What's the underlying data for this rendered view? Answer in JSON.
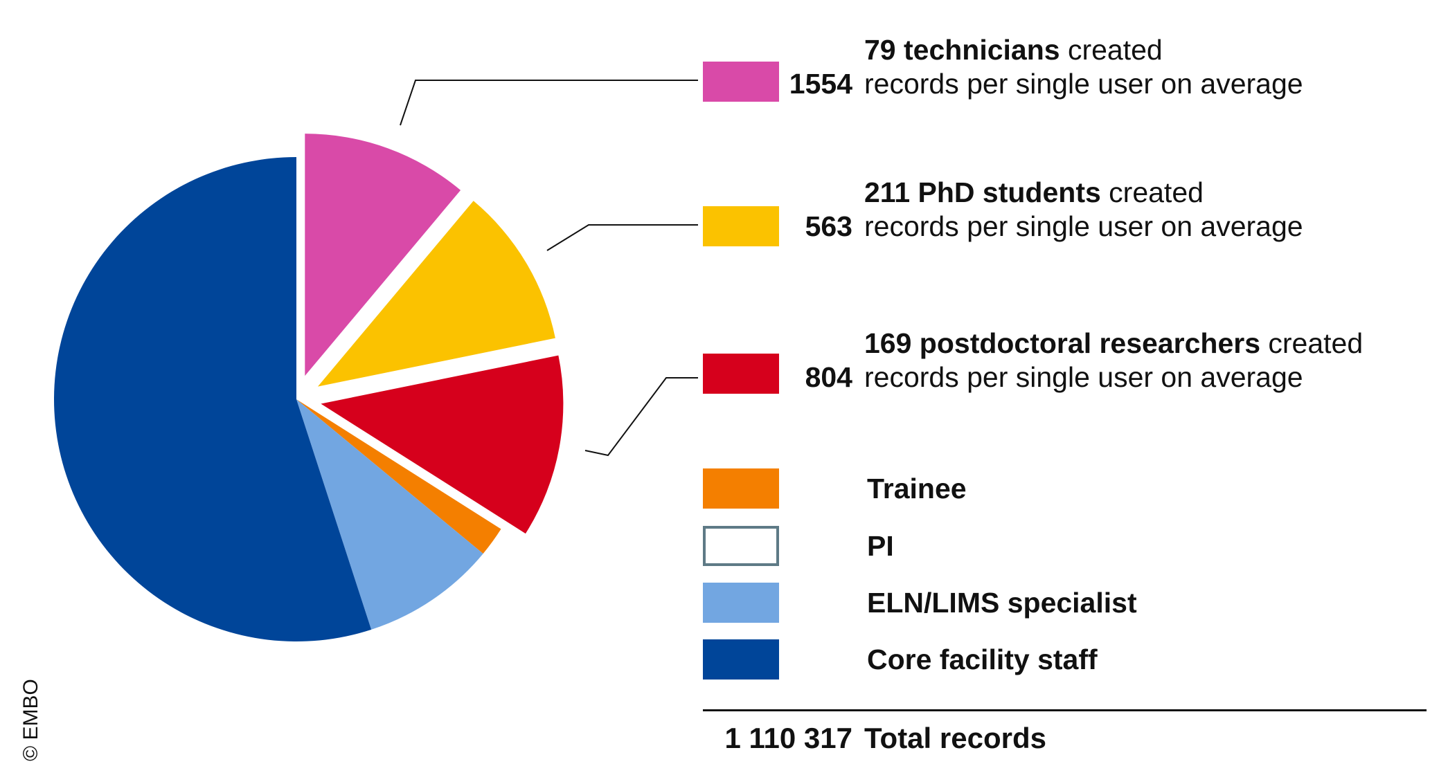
{
  "chart_data": {
    "type": "pie",
    "slices": [
      {
        "key": "technicians",
        "value": 11.1,
        "exploded": true,
        "color": "#d94aa8"
      },
      {
        "key": "phd",
        "value": 10.7,
        "exploded": true,
        "color": "#fbc200"
      },
      {
        "key": "postdoc",
        "value": 12.2,
        "exploded": true,
        "color": "#d6001c"
      },
      {
        "key": "trainee",
        "value": 2.0,
        "exploded": false,
        "color": "#f47f00"
      },
      {
        "key": "pi",
        "value": 0.0,
        "exploded": false,
        "color": "#ffffff"
      },
      {
        "key": "eln",
        "value": 9.0,
        "exploded": false,
        "color": "#72a6e1"
      },
      {
        "key": "core",
        "value": 55.0,
        "exploded": false,
        "color": "#004599"
      }
    ]
  },
  "callouts": [
    {
      "key": "technicians",
      "count_bold": "79 technicians",
      "suffix": " created",
      "records": "1554",
      "line2": "records per single user on average",
      "color": "#d94aa8"
    },
    {
      "key": "phd",
      "count_bold": "211 PhD students",
      "suffix": " created",
      "records": "563",
      "line2": "records per single user on average",
      "color": "#fbc200"
    },
    {
      "key": "postdoc",
      "count_bold": "169 postdoctoral researchers",
      "suffix": " created",
      "records": "804",
      "line2": "records per single user on average",
      "color": "#d6001c"
    }
  ],
  "legend": [
    {
      "key": "trainee",
      "label": "Trainee",
      "color": "#f47f00"
    },
    {
      "key": "pi",
      "label": "PI",
      "color": "#ffffff",
      "border": "#5e7a86"
    },
    {
      "key": "eln",
      "label": "ELN/LIMS specialist",
      "color": "#72a6e1"
    },
    {
      "key": "core",
      "label": "Core facility staff",
      "color": "#004599"
    }
  ],
  "total": {
    "value": "1 110 317",
    "label": "Total records"
  },
  "copyright": "© EMBO"
}
